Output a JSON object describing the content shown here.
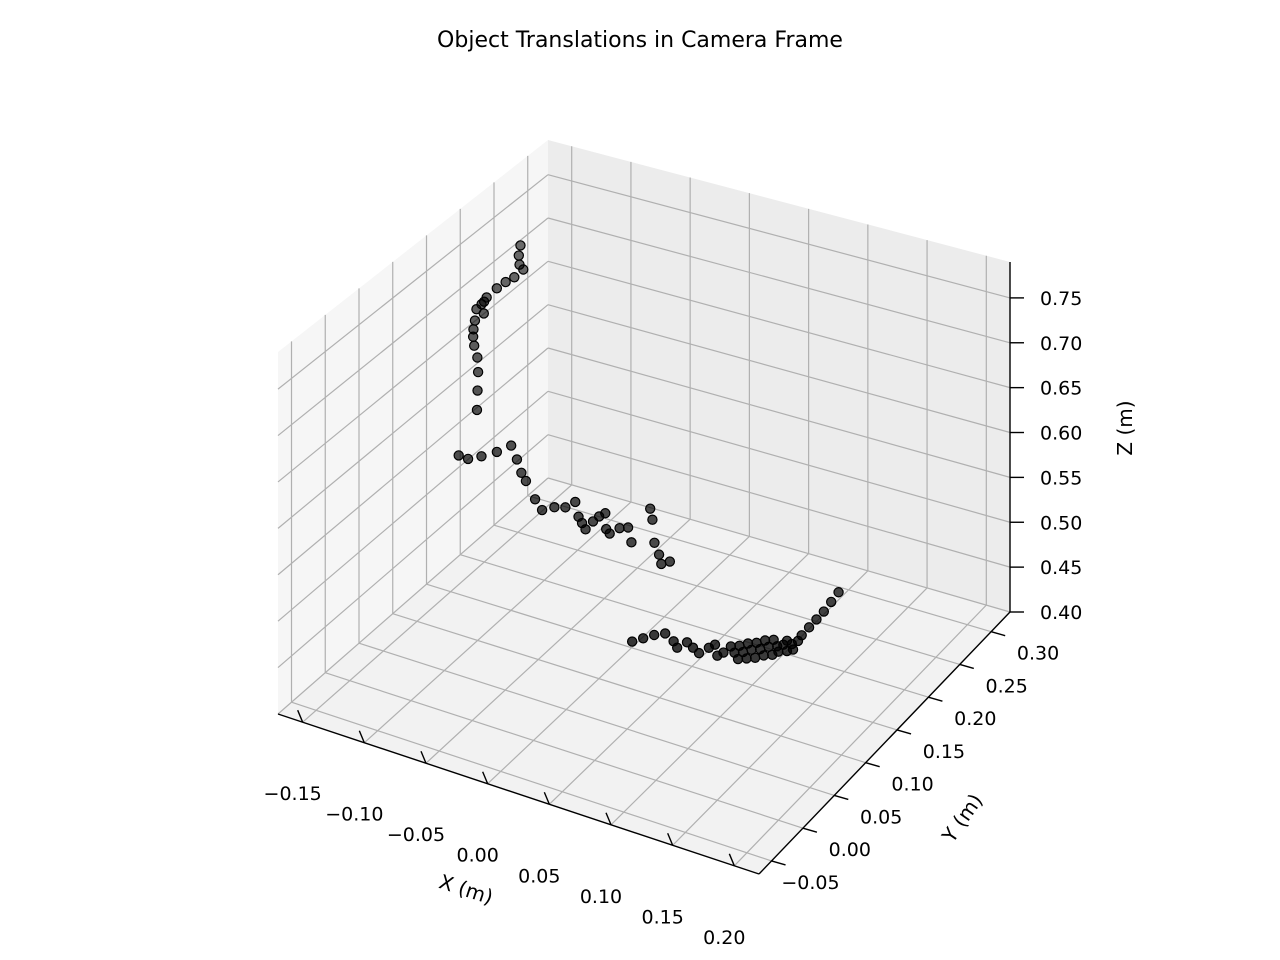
{
  "chart_data": {
    "type": "scatter3d",
    "title": "Object Translations in Camera Frame",
    "xlabel": "X (m)",
    "ylabel": "Y (m)",
    "zlabel": "Z (m)",
    "xticks": [
      "−0.15",
      "−0.10",
      "−0.05",
      "0.00",
      "0.05",
      "0.10",
      "0.15",
      "0.20"
    ],
    "yticks": [
      "−0.05",
      "0.00",
      "0.05",
      "0.10",
      "0.15",
      "0.20",
      "0.25",
      "0.30"
    ],
    "zticks": [
      "0.40",
      "0.45",
      "0.50",
      "0.55",
      "0.60",
      "0.65",
      "0.70",
      "0.75"
    ],
    "xlim": [
      -0.17,
      0.22
    ],
    "ylim": [
      -0.07,
      0.33
    ],
    "zlim": [
      0.4,
      0.79
    ],
    "grid": true,
    "marker_color": "#000000",
    "points": [
      [
        -0.158,
        0.268,
        0.712
      ],
      [
        -0.156,
        0.262,
        0.705
      ],
      [
        -0.152,
        0.256,
        0.7
      ],
      [
        -0.15,
        0.258,
        0.694
      ],
      [
        -0.153,
        0.25,
        0.689
      ],
      [
        -0.158,
        0.246,
        0.684
      ],
      [
        -0.162,
        0.24,
        0.679
      ],
      [
        -0.166,
        0.232,
        0.672
      ],
      [
        -0.168,
        0.228,
        0.666
      ],
      [
        -0.17,
        0.224,
        0.662
      ],
      [
        -0.167,
        0.23,
        0.668
      ],
      [
        -0.165,
        0.226,
        0.658
      ],
      [
        -0.169,
        0.22,
        0.652
      ],
      [
        -0.168,
        0.216,
        0.645
      ],
      [
        -0.166,
        0.212,
        0.64
      ],
      [
        -0.164,
        0.21,
        0.632
      ],
      [
        -0.158,
        0.204,
        0.625
      ],
      [
        -0.154,
        0.198,
        0.614
      ],
      [
        -0.15,
        0.19,
        0.6
      ],
      [
        -0.146,
        0.182,
        0.585
      ],
      [
        -0.15,
        0.162,
        0.545
      ],
      [
        -0.14,
        0.158,
        0.548
      ],
      [
        -0.13,
        0.16,
        0.554
      ],
      [
        -0.12,
        0.165,
        0.56
      ],
      [
        -0.112,
        0.172,
        0.566
      ],
      [
        -0.105,
        0.168,
        0.556
      ],
      [
        -0.098,
        0.162,
        0.548
      ],
      [
        -0.092,
        0.158,
        0.544
      ],
      [
        -0.08,
        0.15,
        0.534
      ],
      [
        -0.072,
        0.146,
        0.528
      ],
      [
        -0.064,
        0.15,
        0.532
      ],
      [
        -0.056,
        0.152,
        0.534
      ],
      [
        -0.05,
        0.156,
        0.54
      ],
      [
        -0.044,
        0.15,
        0.53
      ],
      [
        -0.04,
        0.148,
        0.526
      ],
      [
        -0.036,
        0.146,
        0.522
      ],
      [
        -0.032,
        0.15,
        0.53
      ],
      [
        -0.028,
        0.152,
        0.536
      ],
      [
        -0.024,
        0.154,
        0.54
      ],
      [
        -0.02,
        0.148,
        0.528
      ],
      [
        -0.016,
        0.146,
        0.526
      ],
      [
        -0.01,
        0.15,
        0.532
      ],
      [
        -0.004,
        0.152,
        0.534
      ],
      [
        0.002,
        0.146,
        0.524
      ],
      [
        0.01,
        0.16,
        0.556
      ],
      [
        0.014,
        0.156,
        0.548
      ],
      [
        0.02,
        0.148,
        0.53
      ],
      [
        0.026,
        0.144,
        0.522
      ],
      [
        0.03,
        0.14,
        0.516
      ],
      [
        0.036,
        0.142,
        0.52
      ],
      [
        0.036,
        0.084,
        0.47
      ],
      [
        0.044,
        0.086,
        0.476
      ],
      [
        0.052,
        0.088,
        0.482
      ],
      [
        0.06,
        0.09,
        0.486
      ],
      [
        0.068,
        0.088,
        0.482
      ],
      [
        0.072,
        0.086,
        0.478
      ],
      [
        0.078,
        0.09,
        0.484
      ],
      [
        0.084,
        0.088,
        0.482
      ],
      [
        0.09,
        0.086,
        0.48
      ],
      [
        0.096,
        0.09,
        0.486
      ],
      [
        0.1,
        0.092,
        0.49
      ],
      [
        0.104,
        0.088,
        0.482
      ],
      [
        0.108,
        0.09,
        0.486
      ],
      [
        0.112,
        0.094,
        0.492
      ],
      [
        0.116,
        0.092,
        0.488
      ],
      [
        0.118,
        0.096,
        0.494
      ],
      [
        0.12,
        0.09,
        0.484
      ],
      [
        0.122,
        0.094,
        0.49
      ],
      [
        0.124,
        0.098,
        0.498
      ],
      [
        0.126,
        0.092,
        0.486
      ],
      [
        0.128,
        0.096,
        0.494
      ],
      [
        0.13,
        0.1,
        0.5
      ],
      [
        0.132,
        0.094,
        0.488
      ],
      [
        0.134,
        0.098,
        0.496
      ],
      [
        0.136,
        0.102,
        0.504
      ],
      [
        0.138,
        0.096,
        0.492
      ],
      [
        0.14,
        0.1,
        0.5
      ],
      [
        0.142,
        0.104,
        0.506
      ],
      [
        0.144,
        0.098,
        0.494
      ],
      [
        0.146,
        0.102,
        0.502
      ],
      [
        0.148,
        0.1,
        0.498
      ],
      [
        0.15,
        0.104,
        0.504
      ],
      [
        0.152,
        0.106,
        0.508
      ],
      [
        0.154,
        0.102,
        0.5
      ],
      [
        0.156,
        0.106,
        0.506
      ],
      [
        0.158,
        0.104,
        0.502
      ],
      [
        0.16,
        0.108,
        0.51
      ],
      [
        0.162,
        0.11,
        0.516
      ],
      [
        0.166,
        0.114,
        0.524
      ],
      [
        0.17,
        0.118,
        0.532
      ],
      [
        0.174,
        0.122,
        0.54
      ],
      [
        0.178,
        0.126,
        0.55
      ],
      [
        0.182,
        0.13,
        0.56
      ]
    ]
  }
}
